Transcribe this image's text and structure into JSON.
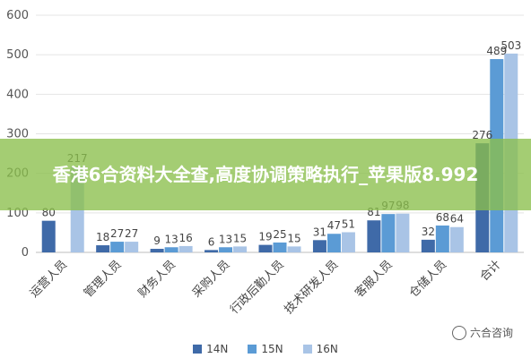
{
  "chart_data": {
    "type": "bar",
    "categories": [
      "运营人员",
      "管理人员",
      "财务人员",
      "采购人员",
      "行政后勤人员",
      "技术研发人员",
      "客服人员",
      "仓储人员",
      "合计"
    ],
    "series": [
      {
        "name": "14N",
        "color": "#3f6aa8",
        "values": [
          80,
          18,
          9,
          6,
          19,
          31,
          81,
          32,
          276
        ]
      },
      {
        "name": "15N",
        "color": "#5b9bd5",
        "values": [
          null,
          27,
          13,
          13,
          25,
          47,
          97,
          68,
          489
        ]
      },
      {
        "name": "16N",
        "color": "#a9c4e6",
        "values": [
          217,
          27,
          16,
          15,
          15,
          51,
          98,
          64,
          503
        ]
      }
    ],
    "yticks": [
      0,
      100,
      200,
      300,
      400,
      500,
      600
    ],
    "ylim": [
      0,
      600
    ],
    "grid": true,
    "legend": "bottom"
  },
  "banner": {
    "text": "香港6合资料大全查,高度协调策略执行_苹果版8.992"
  },
  "watermark": {
    "text": "六合咨询"
  }
}
